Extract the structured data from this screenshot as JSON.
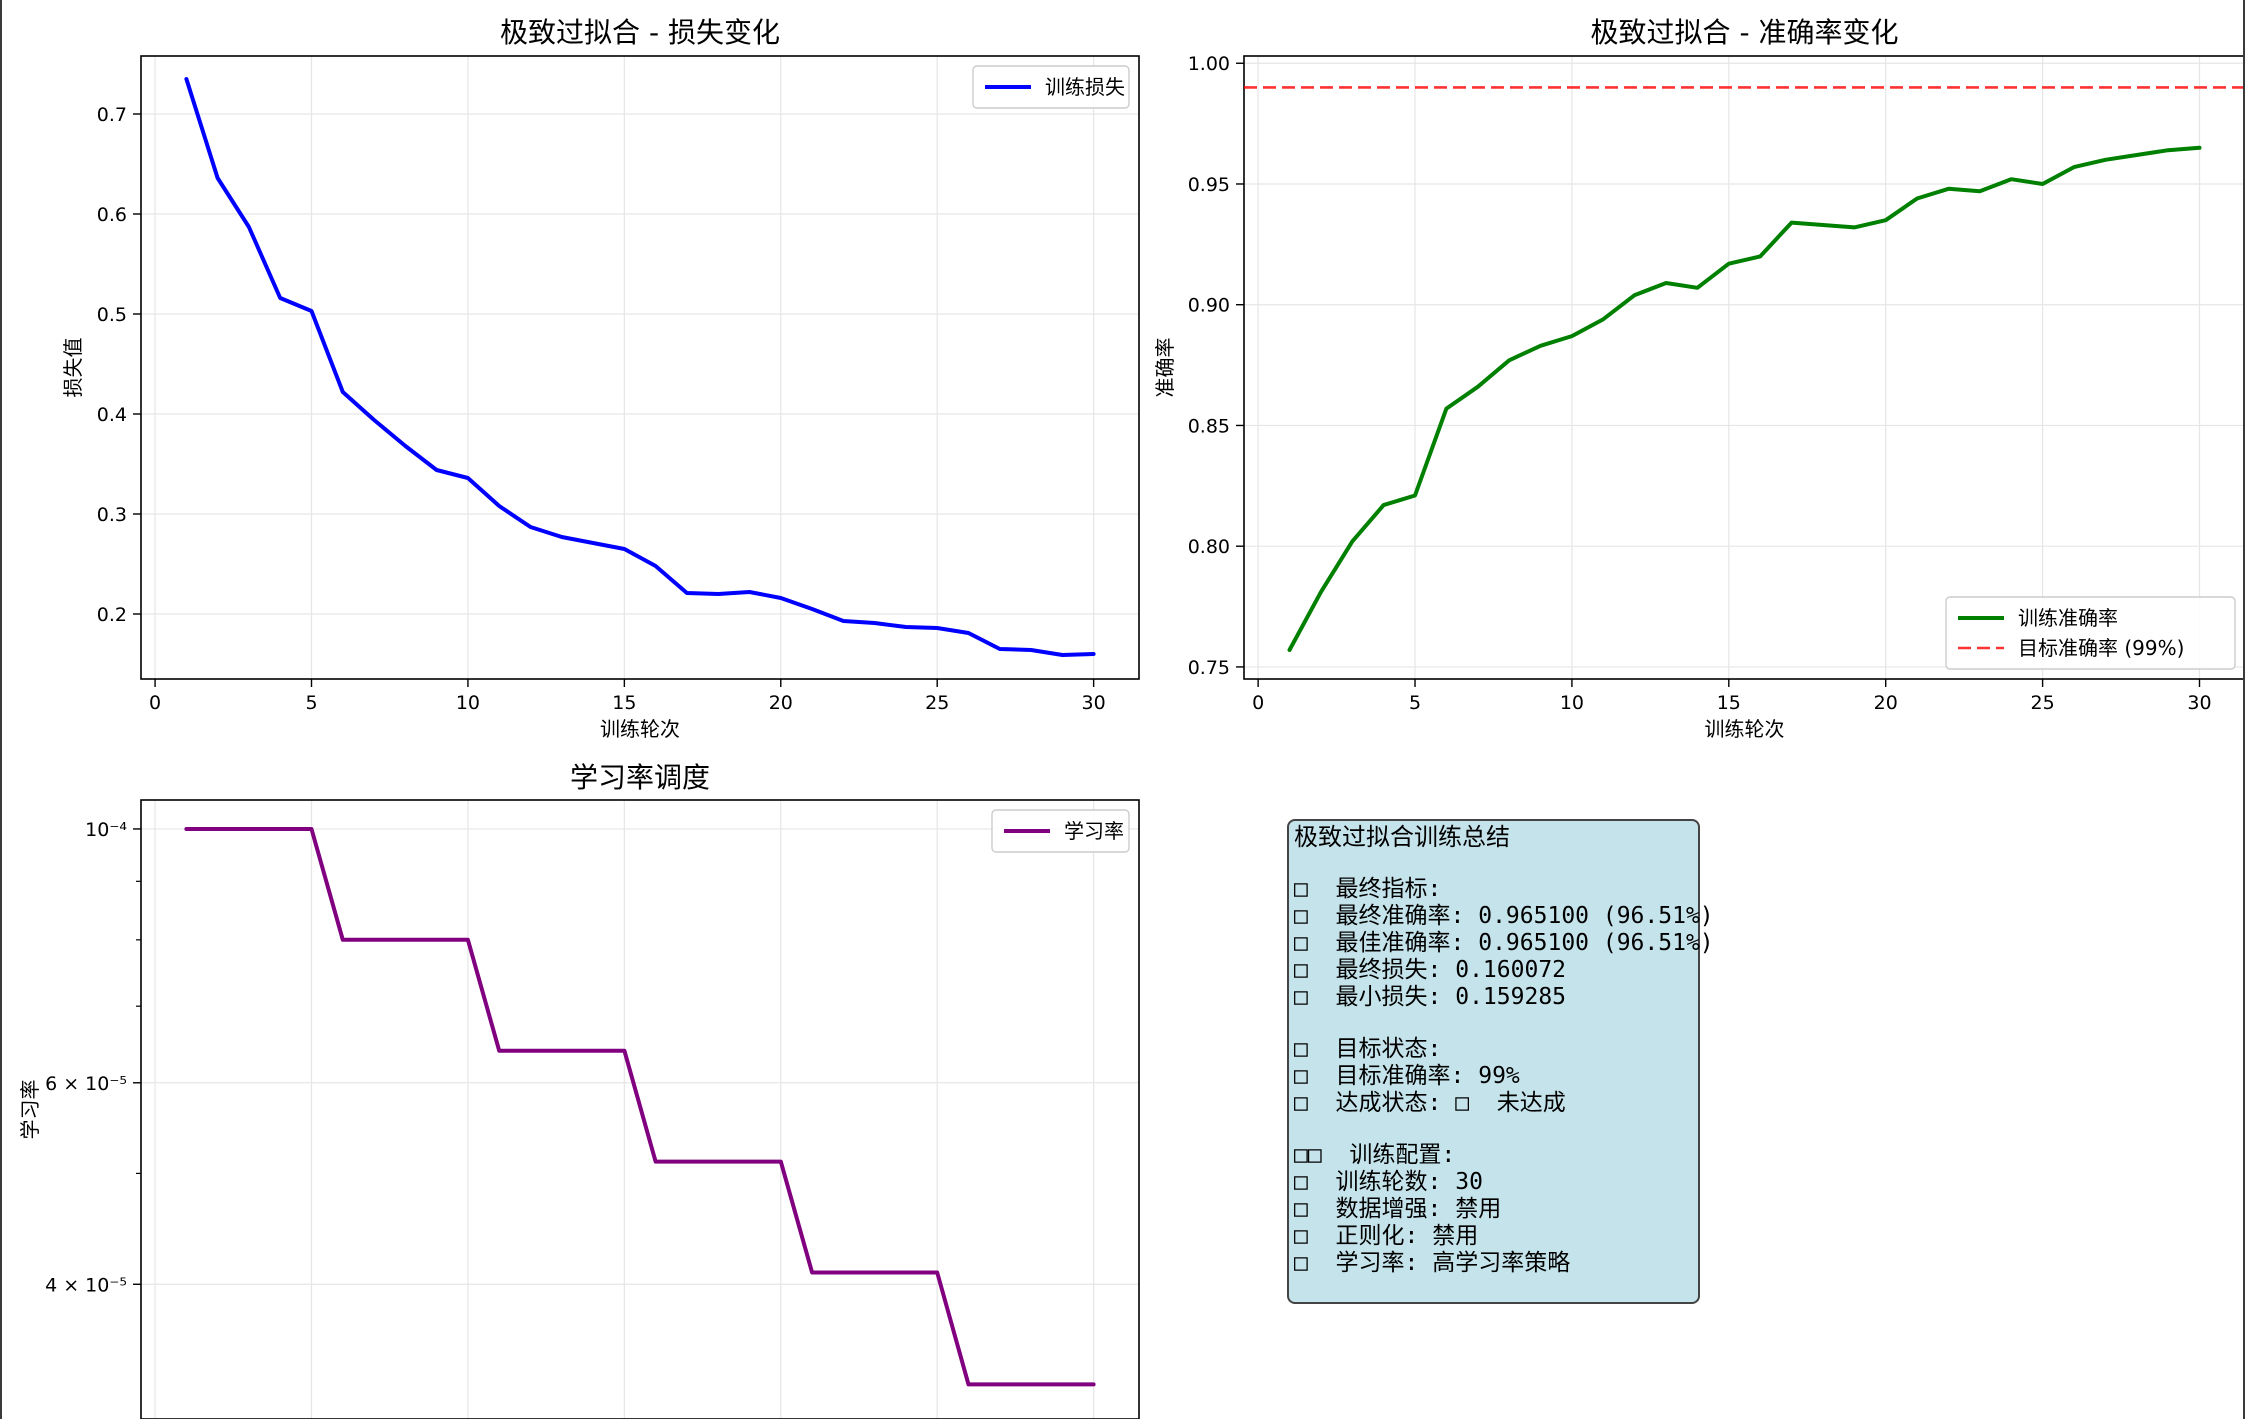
{
  "chart_data": [
    {
      "type": "line",
      "title": "极致过拟合 - 损失变化",
      "xlabel": "训练轮次",
      "ylabel": "损失值",
      "xlim": [
        -0.45,
        31.45
      ],
      "ylim": [
        0.135,
        0.758
      ],
      "xticks": [
        0,
        5,
        10,
        15,
        20,
        25,
        30
      ],
      "yticks": [
        0.2,
        0.3,
        0.4,
        0.5,
        0.6,
        0.7
      ],
      "ytick_labels": [
        "0.2",
        "0.3",
        "0.4",
        "0.5",
        "0.6",
        "0.7"
      ],
      "grid": true,
      "legend_position": "top-right",
      "series": [
        {
          "name": "训练损失",
          "color": "#0000ff",
          "x": [
            1,
            2,
            3,
            4,
            5,
            6,
            7,
            8,
            9,
            10,
            11,
            12,
            13,
            14,
            15,
            16,
            17,
            18,
            19,
            20,
            21,
            22,
            23,
            24,
            25,
            26,
            27,
            28,
            29,
            30
          ],
          "values": [
            0.735,
            0.636,
            0.587,
            0.516,
            0.503,
            0.422,
            0.394,
            0.368,
            0.344,
            0.336,
            0.308,
            0.287,
            0.277,
            0.271,
            0.265,
            0.248,
            0.221,
            0.22,
            0.222,
            0.216,
            0.205,
            0.193,
            0.191,
            0.187,
            0.186,
            0.181,
            0.165,
            0.164,
            0.159,
            0.16
          ]
        }
      ]
    },
    {
      "type": "line",
      "title": "极致过拟合 - 准确率变化",
      "xlabel": "训练轮次",
      "ylabel": "准确率",
      "xlim": [
        -0.45,
        31.45
      ],
      "ylim": [
        0.745,
        1.003
      ],
      "xticks": [
        0,
        5,
        10,
        15,
        20,
        25,
        30
      ],
      "yticks": [
        0.75,
        0.8,
        0.85,
        0.9,
        0.95,
        1.0
      ],
      "ytick_labels": [
        "0.75",
        "0.80",
        "0.85",
        "0.90",
        "0.95",
        "1.00"
      ],
      "grid": true,
      "legend_position": "bottom-right",
      "series": [
        {
          "name": "训练准确率",
          "color": "#008000",
          "x": [
            1,
            2,
            3,
            4,
            5,
            6,
            7,
            8,
            9,
            10,
            11,
            12,
            13,
            14,
            15,
            16,
            17,
            18,
            19,
            20,
            21,
            22,
            23,
            24,
            25,
            26,
            27,
            28,
            29,
            30
          ],
          "values": [
            0.757,
            0.781,
            0.802,
            0.817,
            0.821,
            0.857,
            0.866,
            0.877,
            0.883,
            0.887,
            0.894,
            0.904,
            0.909,
            0.907,
            0.917,
            0.92,
            0.934,
            0.933,
            0.932,
            0.935,
            0.944,
            0.948,
            0.947,
            0.952,
            0.95,
            0.957,
            0.96,
            0.962,
            0.964,
            0.965
          ]
        }
      ],
      "reference_lines": [
        {
          "name": "目标准确率 (99%)",
          "y": 0.99,
          "color": "#ff0000",
          "style": "dashed"
        }
      ]
    },
    {
      "type": "line",
      "title": "学习率调度",
      "xlabel": "",
      "ylabel": "学习率",
      "yscale": "log",
      "xlim": [
        -0.45,
        31.45
      ],
      "ylim": [
        3.05e-05,
        0.000106
      ],
      "xticks": [
        0,
        5,
        10,
        15,
        20,
        25,
        30
      ],
      "yticks": [
        0.0001,
        6e-05,
        4e-05
      ],
      "ytick_labels": [
        "10⁻⁴",
        "6 × 10⁻⁵",
        "4 × 10⁻⁵"
      ],
      "minor_yticks": [
        9e-05,
        8e-05,
        7e-05,
        5e-05
      ],
      "grid": true,
      "legend_position": "top-right",
      "series": [
        {
          "name": "学习率",
          "color": "#800080",
          "x": [
            1,
            2,
            3,
            4,
            5,
            6,
            7,
            8,
            9,
            10,
            11,
            12,
            13,
            14,
            15,
            16,
            17,
            18,
            19,
            20,
            21,
            22,
            23,
            24,
            25,
            26,
            27,
            28,
            29,
            30
          ],
          "values": [
            0.0001,
            0.0001,
            0.0001,
            0.0001,
            0.0001,
            8e-05,
            8e-05,
            8e-05,
            8e-05,
            8e-05,
            6.4e-05,
            6.4e-05,
            6.4e-05,
            6.4e-05,
            6.4e-05,
            5.12e-05,
            5.12e-05,
            5.12e-05,
            5.12e-05,
            5.12e-05,
            4.096e-05,
            4.096e-05,
            4.096e-05,
            4.096e-05,
            4.096e-05,
            3.27e-05,
            3.27e-05,
            3.27e-05,
            3.27e-05,
            3.27e-05
          ]
        }
      ]
    }
  ],
  "summary": {
    "title": "极致过拟合训练总结",
    "lines": [
      "□  最终指标:",
      "□  最终准确率: 0.965100 (96.51%)",
      "□  最佳准确率: 0.965100 (96.51%)",
      "□  最终损失: 0.160072",
      "□  最小损失: 0.159285",
      "",
      "□  目标状态:",
      "□  目标准确率: 99%",
      "□  达成状态: □  未达成",
      "",
      "□□  训练配置:",
      "□  训练轮数: 30",
      "□  数据增强: 禁用",
      "□  正则化: 禁用",
      "□  学习率: 高学习率策略"
    ]
  }
}
